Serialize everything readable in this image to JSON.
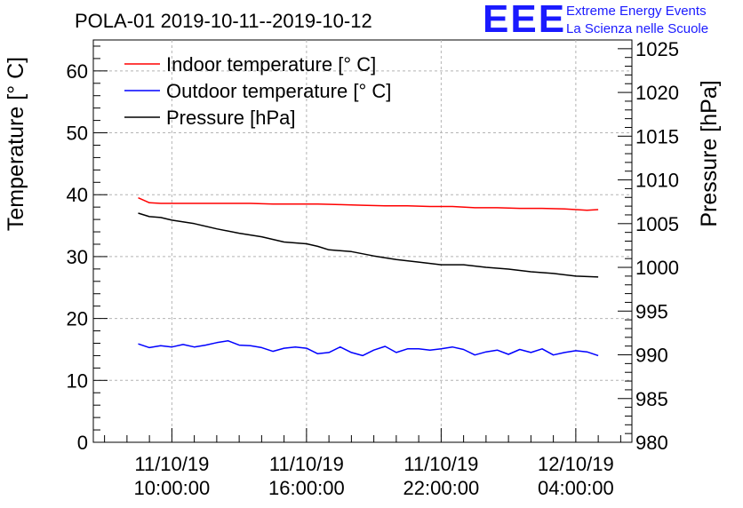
{
  "chart_data": {
    "type": "line",
    "title": "POLA-01 2019-10-11--2019-10-12",
    "ylabel_left": "Temperature [° C]",
    "ylabel_right": "Pressure [hPa]",
    "ylim_left": [
      0,
      65
    ],
    "ylim_right": [
      980,
      1026
    ],
    "xlim_hours": [
      6.5,
      30.5
    ],
    "grid": true,
    "legend_position": "top-left",
    "x_ticks": [
      {
        "hour": 10,
        "line1": "11/10/19",
        "line2": "10:00:00"
      },
      {
        "hour": 16,
        "line1": "11/10/19",
        "line2": "16:00:00"
      },
      {
        "hour": 22,
        "line1": "11/10/19",
        "line2": "22:00:00"
      },
      {
        "hour": 28,
        "line1": "12/10/19",
        "line2": "04:00:00"
      }
    ],
    "y_ticks_left": [
      0,
      10,
      20,
      30,
      40,
      50,
      60
    ],
    "y_ticks_right": [
      980,
      985,
      990,
      995,
      1000,
      1005,
      1010,
      1015,
      1020,
      1025
    ],
    "series": [
      {
        "name": "Indoor temperature [° C]",
        "axis": "left",
        "color": "#ff0000",
        "x": [
          8.5,
          9,
          9.5,
          10.5,
          11.5,
          12.5,
          13.5,
          14.5,
          15.5,
          16.5,
          17.5,
          18.5,
          19.5,
          20.5,
          21.5,
          22.5,
          23.5,
          24.5,
          25.5,
          26.5,
          27.5,
          28.5,
          29
        ],
        "values": [
          39.5,
          38.7,
          38.6,
          38.6,
          38.6,
          38.6,
          38.6,
          38.5,
          38.5,
          38.5,
          38.4,
          38.3,
          38.2,
          38.2,
          38.1,
          38.1,
          37.9,
          37.9,
          37.8,
          37.8,
          37.7,
          37.5,
          37.6
        ]
      },
      {
        "name": "Outdoor temperature [° C]",
        "axis": "left",
        "color": "#0000ff",
        "x": [
          8.5,
          9,
          9.5,
          10,
          10.5,
          11,
          11.5,
          12,
          12.5,
          13,
          13.5,
          14,
          14.5,
          15,
          15.5,
          16,
          16.5,
          17,
          17.5,
          18,
          18.5,
          19,
          19.5,
          20,
          20.5,
          21,
          21.5,
          22,
          22.5,
          23,
          23.5,
          24,
          24.5,
          25,
          25.5,
          26,
          26.5,
          27,
          27.5,
          28,
          28.5,
          29
        ],
        "values": [
          15.9,
          15.3,
          15.6,
          15.4,
          15.8,
          15.4,
          15.7,
          16.1,
          16.4,
          15.7,
          15.6,
          15.3,
          14.7,
          15.2,
          15.4,
          15.2,
          14.3,
          14.5,
          15.4,
          14.5,
          14.0,
          14.9,
          15.5,
          14.5,
          15.1,
          15.1,
          14.9,
          15.1,
          15.4,
          15.0,
          14.1,
          14.6,
          14.9,
          14.2,
          15.0,
          14.5,
          15.1,
          14.1,
          14.5,
          14.8,
          14.6,
          14.0
        ]
      },
      {
        "name": "Pressure [hPa]",
        "axis": "right",
        "color": "#000000",
        "x": [
          8.5,
          9,
          9.5,
          10,
          11,
          12,
          13,
          14,
          15,
          16,
          16.5,
          17,
          18,
          19,
          20,
          21,
          22,
          23,
          24,
          25,
          26,
          27,
          28,
          29
        ],
        "values": [
          1006.2,
          1005.8,
          1005.7,
          1005.4,
          1005.0,
          1004.4,
          1003.9,
          1003.5,
          1002.9,
          1002.7,
          1002.4,
          1002.0,
          1001.8,
          1001.3,
          1000.9,
          1000.6,
          1000.3,
          1000.3,
          1000.0,
          999.8,
          999.5,
          999.3,
          999.0,
          998.9
        ]
      }
    ]
  },
  "logo": {
    "mark": "EEE",
    "line1": "Extreme Energy Events",
    "line2": "La Scienza nelle Scuole"
  }
}
